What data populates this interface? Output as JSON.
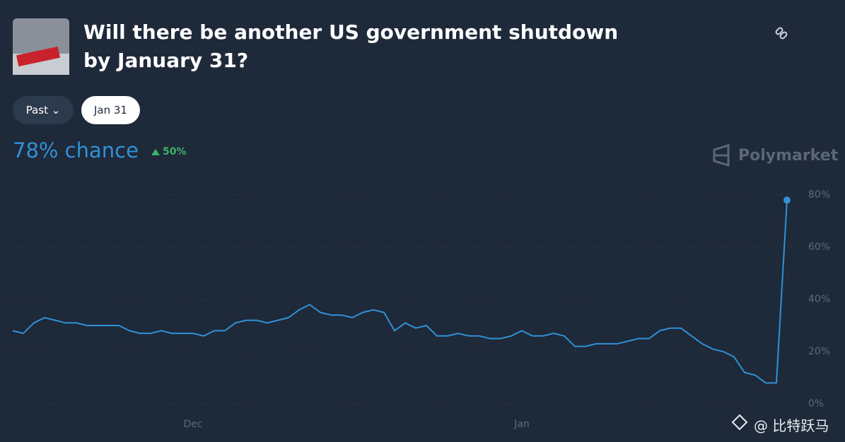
{
  "header": {
    "title": "Will there be another US government shutdown by January 31?",
    "filter": "Past",
    "date": "Jan 31",
    "chance": "78% chance",
    "change": "50%",
    "brand": "Polymarket"
  },
  "watermark": "@ 比特跃马",
  "chart_data": {
    "type": "line",
    "categories": [
      null,
      null,
      null,
      null,
      null,
      null,
      null,
      null,
      null,
      null,
      null,
      null,
      null,
      null,
      null,
      null,
      null,
      "Dec",
      null,
      null,
      null,
      null,
      null,
      null,
      null,
      null,
      null,
      null,
      null,
      null,
      null,
      null,
      null,
      null,
      null,
      null,
      null,
      null,
      null,
      null,
      null,
      null,
      null,
      null,
      null,
      null,
      null,
      null,
      "Jan",
      null,
      null,
      null,
      null,
      null,
      null,
      null,
      null,
      null,
      null,
      null,
      null,
      null,
      null,
      null,
      null,
      null,
      null,
      null,
      null,
      null,
      null,
      null,
      null,
      null
    ],
    "series": [
      {
        "color": "#3091d6",
        "values": [
          28,
          27,
          31,
          33,
          32,
          31,
          31,
          30,
          30,
          30,
          30,
          28,
          27,
          27,
          28,
          27,
          27,
          27,
          26,
          28,
          28,
          31,
          32,
          32,
          31,
          32,
          33,
          36,
          38,
          35,
          34,
          34,
          33,
          35,
          36,
          35,
          28,
          31,
          29,
          30,
          26,
          26,
          27,
          26,
          26,
          25,
          25,
          26,
          28,
          26,
          26,
          27,
          26,
          22,
          22,
          23,
          23,
          23,
          24,
          25,
          25,
          28,
          29,
          29,
          26,
          23,
          21,
          20,
          18,
          12,
          11,
          8,
          8,
          78
        ]
      }
    ],
    "ylim": [
      0,
      80
    ],
    "yticks": [
      {
        "value": 0,
        "label": "0%"
      },
      {
        "value": 20,
        "label": "20%"
      },
      {
        "value": 40,
        "label": "40%"
      },
      {
        "value": 60,
        "label": "60%"
      },
      {
        "value": 80,
        "label": "80%"
      }
    ],
    "grid": true
  }
}
